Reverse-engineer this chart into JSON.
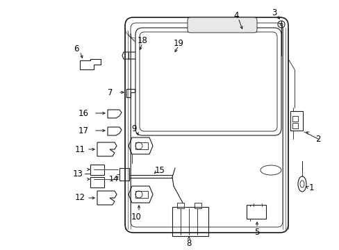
{
  "bg_color": "#ffffff",
  "line_color": "#1a1a1a",
  "label_color": "#000000",
  "label_fontsize": 8.5,
  "fig_width": 4.89,
  "fig_height": 3.6,
  "dpi": 100
}
